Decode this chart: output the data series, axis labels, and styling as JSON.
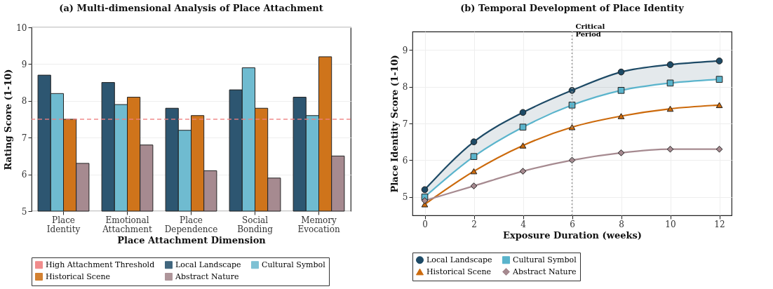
{
  "chart_data": [
    {
      "type": "bar",
      "title": "(a) Multi-dimensional Analysis of Place Attachment",
      "xlabel": "Place Attachment Dimension",
      "ylabel": "Rating Score (1-10)",
      "categories": [
        "Place Identity",
        "Emotional Attachment",
        "Place Dependence",
        "Social Bonding",
        "Memory Evocation"
      ],
      "series": [
        {
          "name": "Local Landscape",
          "color": "#2d5671",
          "values": [
            8.7,
            8.5,
            7.8,
            8.3,
            8.1
          ]
        },
        {
          "name": "Cultural Symbol",
          "color": "#6fbbd0",
          "values": [
            8.2,
            7.9,
            7.2,
            8.9,
            7.6
          ]
        },
        {
          "name": "Historical Scene",
          "color": "#cf741b",
          "values": [
            7.5,
            8.1,
            7.6,
            7.8,
            9.2
          ]
        },
        {
          "name": "Abstract Nature",
          "color": "#a68a90",
          "values": [
            6.3,
            6.8,
            6.1,
            5.9,
            6.5
          ]
        }
      ],
      "ylim": [
        5,
        10
      ],
      "yticks": [
        5,
        6,
        7,
        8,
        9,
        10
      ],
      "grid": "y",
      "legend": "bottom",
      "ref_lines": [
        {
          "axis": "y",
          "value": 7.5,
          "label": "High Attachment Threshold",
          "color": "#f08080",
          "line_style": "dashed"
        }
      ]
    },
    {
      "type": "line",
      "title": "(b) Temporal Development of Place Identity",
      "xlabel": "Exposure Duration (weeks)",
      "ylabel": "Place Identity Score (1-10)",
      "x": [
        0,
        2,
        4,
        6,
        8,
        10,
        12
      ],
      "series": [
        {
          "name": "Local Landscape",
          "color": "#1d4a66",
          "marker": "circle",
          "values": [
            5.2,
            6.5,
            7.3,
            7.9,
            8.4,
            8.6,
            8.7
          ],
          "lower": [
            5.0,
            6.1,
            6.9,
            7.5,
            7.9,
            8.1,
            8.2
          ],
          "upper": [
            5.2,
            6.5,
            7.3,
            7.9,
            8.4,
            8.6,
            8.7
          ]
        },
        {
          "name": "Cultural Symbol",
          "color": "#5ab4cc",
          "marker": "square",
          "values": [
            5.0,
            6.1,
            6.9,
            7.5,
            7.9,
            8.1,
            8.2
          ]
        },
        {
          "name": "Historical Scene",
          "color": "#cc6a0c",
          "marker": "triangle",
          "values": [
            4.8,
            5.7,
            6.4,
            6.9,
            7.2,
            7.4,
            7.5
          ]
        },
        {
          "name": "Abstract Nature",
          "color": "#a68a90",
          "marker": "diamond",
          "values": [
            4.9,
            5.3,
            5.7,
            6.0,
            6.2,
            6.3,
            6.3
          ]
        }
      ],
      "xlim": [
        -0.5,
        12.5
      ],
      "xticks": [
        0,
        2,
        4,
        6,
        8,
        10,
        12
      ],
      "ylim": [
        4.5,
        9.5
      ],
      "yticks": [
        5,
        6,
        7,
        8,
        9
      ],
      "grid": true,
      "legend": "bottom",
      "line_style": "solid",
      "ref_lines": [
        {
          "axis": "x",
          "value": 6,
          "label": "Critical Period",
          "color": "#999999",
          "line_style": "dotted"
        }
      ]
    }
  ]
}
